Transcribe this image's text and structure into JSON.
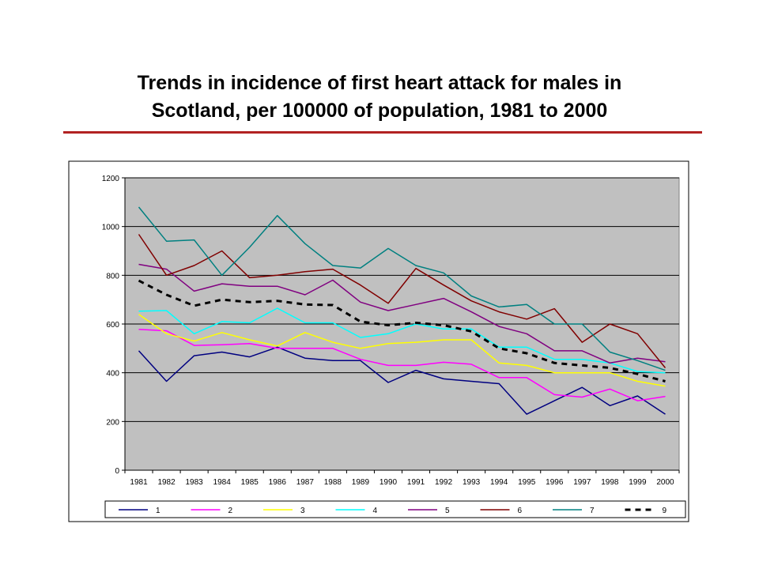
{
  "slide": {
    "title_line1": "Trends in incidence of first heart attack for males in",
    "title_line2": "Scotland,  per 100000 of population, 1981 to 2000",
    "rule_color": "#b22222"
  },
  "chart_data": {
    "type": "line",
    "x": [
      "1981",
      "1982",
      "1983",
      "1984",
      "1985",
      "1986",
      "1987",
      "1988",
      "1989",
      "1990",
      "1991",
      "1992",
      "1993",
      "1994",
      "1995",
      "1996",
      "1997",
      "1998",
      "1999",
      "2000"
    ],
    "ylim": [
      0,
      1200
    ],
    "yticks": [
      0,
      200,
      400,
      600,
      800,
      1000,
      1200
    ],
    "grid": true,
    "plot_background": "#c0c0c0",
    "legend_placement": "bottom",
    "series": [
      {
        "name": "1",
        "color": "#000080",
        "dashed": false,
        "values": [
          490,
          365,
          470,
          485,
          465,
          505,
          460,
          450,
          450,
          360,
          410,
          375,
          365,
          355,
          230,
          285,
          340,
          265,
          305,
          230
        ]
      },
      {
        "name": "2",
        "color": "#ff00ff",
        "dashed": false,
        "values": [
          578,
          572,
          512,
          515,
          520,
          500,
          500,
          500,
          455,
          430,
          430,
          443,
          435,
          380,
          380,
          310,
          300,
          333,
          285,
          303
        ]
      },
      {
        "name": "3",
        "color": "#ffff00",
        "dashed": false,
        "values": [
          640,
          560,
          530,
          565,
          535,
          510,
          565,
          525,
          500,
          520,
          525,
          535,
          535,
          440,
          430,
          400,
          400,
          400,
          365,
          345
        ]
      },
      {
        "name": "4",
        "color": "#00ffff",
        "dashed": false,
        "values": [
          653,
          655,
          560,
          610,
          605,
          665,
          605,
          605,
          545,
          560,
          600,
          580,
          580,
          505,
          505,
          455,
          455,
          440,
          405,
          400
        ]
      },
      {
        "name": "5",
        "color": "#800080",
        "dashed": false,
        "values": [
          845,
          825,
          735,
          765,
          755,
          755,
          720,
          780,
          690,
          655,
          680,
          705,
          650,
          590,
          560,
          490,
          490,
          440,
          460,
          445
        ]
      },
      {
        "name": "6",
        "color": "#800000",
        "dashed": false,
        "values": [
          968,
          800,
          840,
          900,
          790,
          800,
          815,
          825,
          760,
          685,
          828,
          760,
          695,
          650,
          620,
          663,
          525,
          600,
          560,
          420
        ]
      },
      {
        "name": "7",
        "color": "#008080",
        "dashed": false,
        "values": [
          1080,
          940,
          945,
          800,
          915,
          1045,
          930,
          840,
          830,
          910,
          840,
          810,
          715,
          670,
          680,
          600,
          600,
          485,
          450,
          410
        ]
      },
      {
        "name": "9",
        "color": "#000000",
        "dashed": true,
        "values": [
          778,
          720,
          675,
          700,
          690,
          695,
          680,
          678,
          610,
          595,
          605,
          595,
          570,
          500,
          480,
          440,
          430,
          420,
          395,
          365
        ]
      }
    ]
  }
}
